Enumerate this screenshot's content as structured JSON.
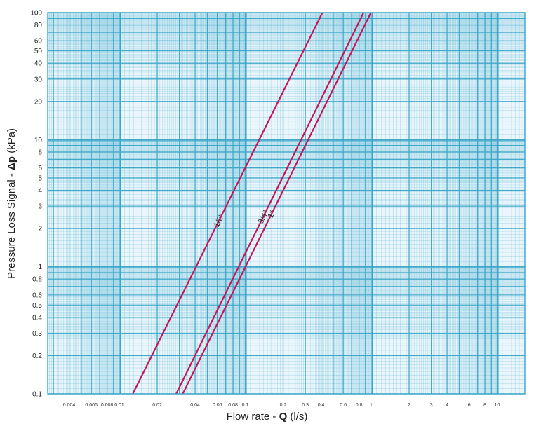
{
  "chart_data": {
    "type": "line",
    "title": "",
    "xlabel_prefix": "Flow rate - ",
    "xlabel_symbol": "Q",
    "xlabel_unit": " (l/s)",
    "ylabel_prefix": "Pressure Loss Signal  - ",
    "ylabel_symbol": "Δp",
    "ylabel_unit": " (kPa)",
    "x_scale": "log",
    "y_scale": "log",
    "xlim": [
      0.003,
      0.2
    ],
    "ylim": [
      0.1,
      100
    ],
    "grid": true,
    "grid_color": "#3aa6c8",
    "plot_bg": "#eaf6fb",
    "line_color": "#c2185b",
    "x_ticks": [
      {
        "value": 0.004,
        "label": "0.004"
      },
      {
        "value": 0.006,
        "label": "0.006"
      },
      {
        "value": 0.008,
        "label": "0.008"
      },
      {
        "value": 0.01,
        "label": "0.01"
      },
      {
        "value": 0.02,
        "label": "0.02"
      },
      {
        "value": 0.04,
        "label": "0.04"
      },
      {
        "value": 0.06,
        "label": "0.06"
      },
      {
        "value": 0.08,
        "label": "0.08"
      },
      {
        "value": 0.1,
        "label": "0.1"
      },
      {
        "value": 0.2,
        "label": "0.2"
      },
      {
        "value": 0.3,
        "label": "0.3"
      },
      {
        "value": 0.4,
        "label": "0.4"
      },
      {
        "value": 0.6,
        "label": "0.6"
      },
      {
        "value": 0.8,
        "label": "0.8"
      },
      {
        "value": 1,
        "label": "1"
      },
      {
        "value": 2,
        "label": "2"
      },
      {
        "value": 3,
        "label": "3"
      },
      {
        "value": 4,
        "label": "4"
      },
      {
        "value": 6,
        "label": "6"
      },
      {
        "value": 8,
        "label": "8"
      },
      {
        "value": 10,
        "label": "10"
      }
    ],
    "y_ticks": [
      {
        "value": 0.1,
        "label": "0.1"
      },
      {
        "value": 0.2,
        "label": "0.2"
      },
      {
        "value": 0.3,
        "label": "0.3"
      },
      {
        "value": 0.4,
        "label": "0.4"
      },
      {
        "value": 0.5,
        "label": "0.5"
      },
      {
        "value": 0.6,
        "label": "0.6"
      },
      {
        "value": 0.8,
        "label": "0.8"
      },
      {
        "value": 1,
        "label": "1"
      },
      {
        "value": 2,
        "label": "2"
      },
      {
        "value": 3,
        "label": "3"
      },
      {
        "value": 4,
        "label": "4"
      },
      {
        "value": 5,
        "label": "5"
      },
      {
        "value": 6,
        "label": "6"
      },
      {
        "value": 8,
        "label": "8"
      },
      {
        "value": 10,
        "label": "10"
      },
      {
        "value": 20,
        "label": "20"
      },
      {
        "value": 30,
        "label": "30"
      },
      {
        "value": 40,
        "label": "40"
      },
      {
        "value": 50,
        "label": "50"
      },
      {
        "value": 60,
        "label": "60"
      },
      {
        "value": 80,
        "label": "80"
      },
      {
        "value": 100,
        "label": "100"
      }
    ],
    "series": [
      {
        "name": "1/2\"",
        "points": [
          [
            0.0128,
            0.1
          ],
          [
            0.41,
            100
          ]
        ],
        "label_at": 0.058
      },
      {
        "name": "3/4\"",
        "points": [
          [
            0.0283,
            0.1
          ],
          [
            0.87,
            100
          ]
        ],
        "label_at": 0.13
      },
      {
        "name": "1\"",
        "points": [
          [
            0.0319,
            0.1
          ],
          [
            0.995,
            100
          ]
        ],
        "label_at": 0.155
      }
    ]
  }
}
